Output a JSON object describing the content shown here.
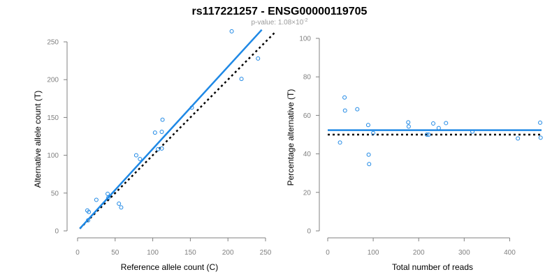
{
  "title": "rs117221257 - ENSG00000119705",
  "subtitle": {
    "prefix": "p-value: 1.08×10",
    "exponent": "-2"
  },
  "colors": {
    "points": "#1e88e5",
    "fit_line": "#1e88e5",
    "reference_line": "#000000",
    "axis": "#808080"
  },
  "chart_data": [
    {
      "type": "scatter",
      "xlabel": "Reference allele count (C)",
      "ylabel": "Alternative allele count (T)",
      "xlim": [
        0,
        250
      ],
      "ylim": [
        0,
        250
      ],
      "xticks": [
        "0",
        "50",
        "100",
        "150",
        "200",
        "250"
      ],
      "yticks": [
        "0",
        "50",
        "100",
        "150",
        "200",
        "250"
      ],
      "xtick_values": [
        0,
        50,
        100,
        150,
        200,
        250
      ],
      "ytick_values": [
        0,
        50,
        100,
        150,
        200,
        250
      ],
      "series": [
        {
          "x": [
            13,
            15,
            25,
            14,
            40,
            41,
            55,
            58,
            78,
            83,
            103,
            107,
            112,
            113,
            112,
            152,
            205,
            218,
            240
          ],
          "y": [
            27,
            25,
            41,
            14,
            49,
            44,
            36,
            31,
            100,
            95,
            130,
            108,
            131,
            147,
            109,
            163,
            264,
            201,
            228
          ]
        }
      ],
      "fit_line": {
        "x": [
          3,
          245
        ],
        "y": [
          3,
          266
        ]
      },
      "reference_line": {
        "x": [
          3,
          262
        ],
        "y": [
          3,
          262
        ]
      }
    },
    {
      "type": "scatter",
      "xlabel": "Total number of reads",
      "ylabel": "Percentage alternative (T)",
      "xlim": [
        0,
        470
      ],
      "ylim": [
        0,
        100
      ],
      "xticks": [
        "0",
        "100",
        "200",
        "300",
        "400"
      ],
      "yticks": [
        "0",
        "20",
        "40",
        "60",
        "80",
        "100"
      ],
      "xtick_values": [
        0,
        100,
        200,
        300,
        400
      ],
      "ytick_values": [
        0,
        20,
        40,
        60,
        80,
        100
      ],
      "series": [
        {
          "x": [
            27,
            37,
            38,
            65,
            89,
            90,
            91,
            100,
            177,
            178,
            218,
            222,
            232,
            244,
            260,
            318,
            418,
            467,
            468
          ],
          "y": [
            45.9,
            69.3,
            62.5,
            63.2,
            55.0,
            39.6,
            34.7,
            50.8,
            56.4,
            54.2,
            50.0,
            50.0,
            55.8,
            53.4,
            56.0,
            51.6,
            48.0,
            56.2,
            48.4
          ]
        }
      ],
      "fit_line": {
        "x": [
          0,
          470
        ],
        "y": [
          52.3,
          52.3
        ]
      },
      "reference_line": {
        "x": [
          0,
          470
        ],
        "y": [
          50,
          50
        ]
      }
    }
  ]
}
